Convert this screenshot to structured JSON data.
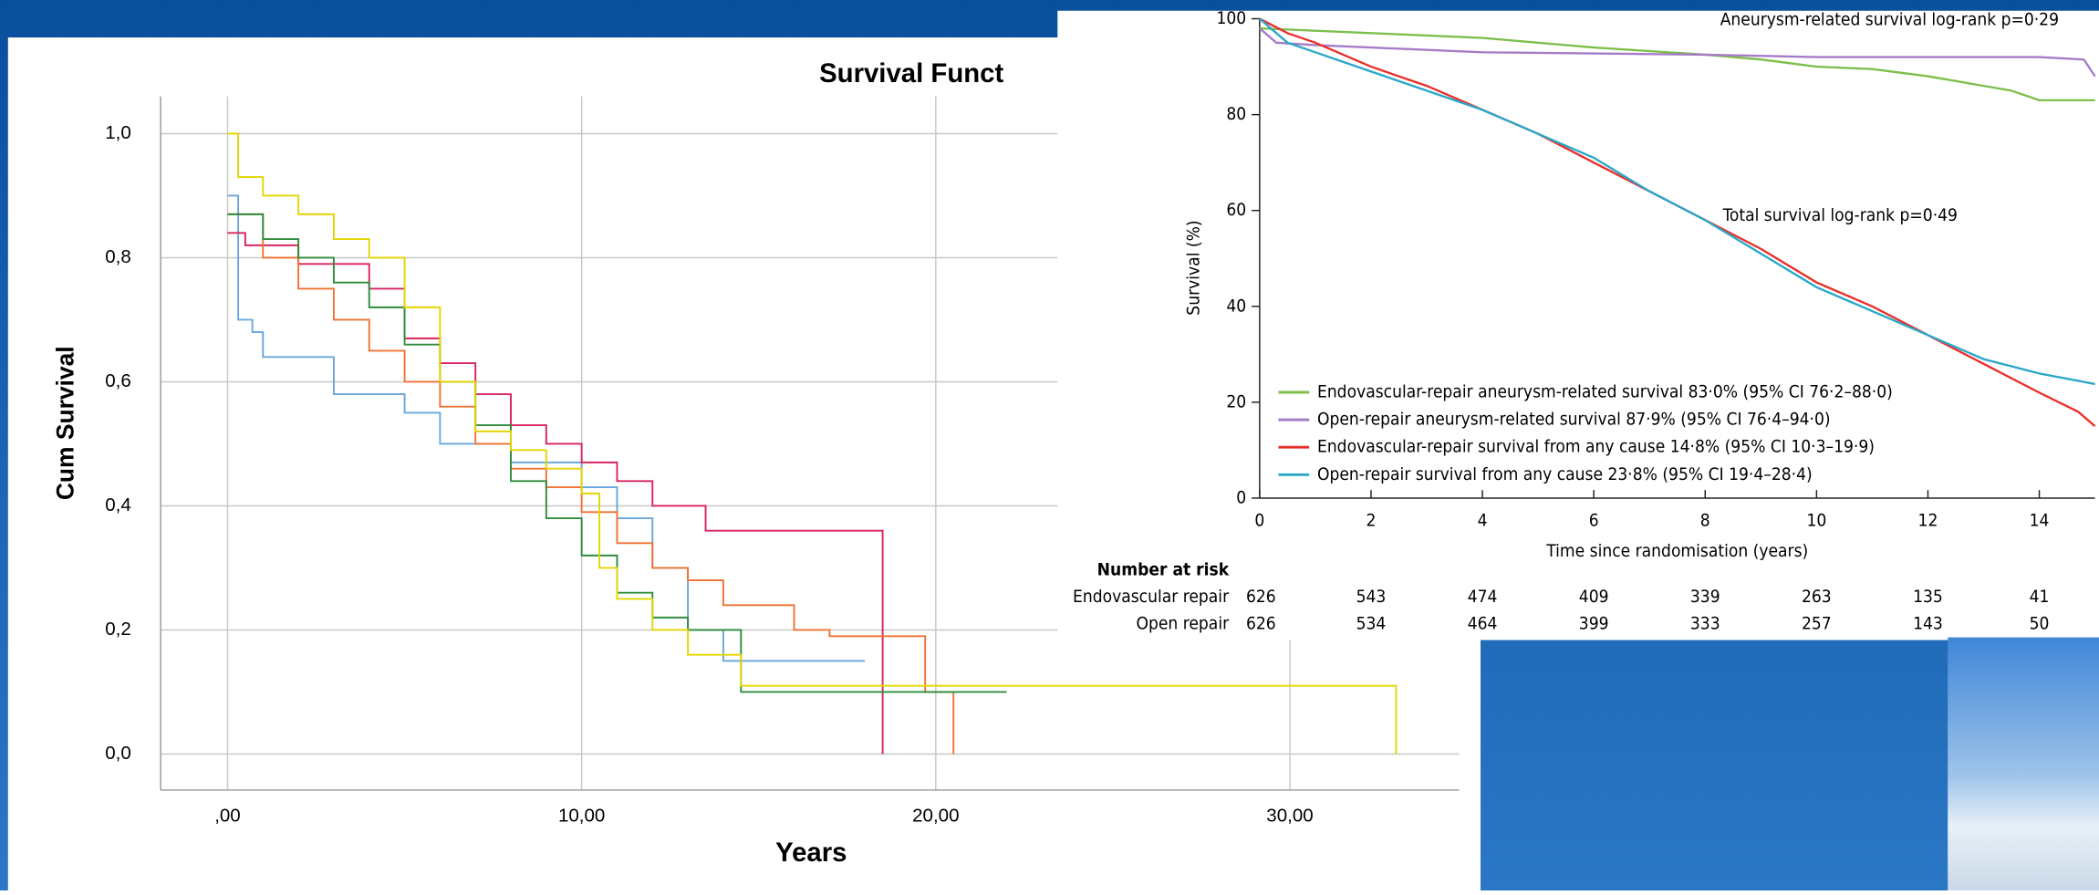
{
  "chart_data": [
    {
      "type": "line",
      "step": true,
      "title": "Survival Funct",
      "x_label": "Years",
      "y_label": "Cum Survival",
      "grid": true,
      "xlim": [
        -1.89,
        34.78
      ],
      "ylim": [
        -0.058,
        1.06
      ],
      "xticks": [
        {
          "value": 0,
          "label": ",00"
        },
        {
          "value": 10,
          "label": "10,00"
        },
        {
          "value": 20,
          "label": "20,00"
        },
        {
          "value": 30,
          "label": "30,00"
        }
      ],
      "yticks": [
        {
          "value": 0,
          "label": "0,0"
        },
        {
          "value": 0.2,
          "label": "0,2"
        },
        {
          "value": 0.4,
          "label": "0,4"
        },
        {
          "value": 0.6,
          "label": "0,6"
        },
        {
          "value": 0.8,
          "label": "0,8"
        },
        {
          "value": 1.0,
          "label": "1,0"
        }
      ],
      "series": [
        {
          "color": "#6aa6dc",
          "x": [
            0,
            0.3,
            0.7,
            1,
            2.5,
            3,
            5,
            6,
            8,
            9,
            10,
            11,
            12,
            13,
            14,
            18
          ],
          "values": [
            0.9,
            0.7,
            0.68,
            0.64,
            0.64,
            0.58,
            0.55,
            0.5,
            0.47,
            0.47,
            0.43,
            0.38,
            0.3,
            0.2,
            0.15,
            0.15
          ]
        },
        {
          "color": "#d9245c",
          "x": [
            0,
            0.5,
            2,
            4,
            5,
            6,
            7,
            8,
            9,
            10,
            11,
            12,
            13.5,
            16,
            18.5
          ],
          "values": [
            0.84,
            0.82,
            0.79,
            0.75,
            0.67,
            0.63,
            0.58,
            0.53,
            0.5,
            0.47,
            0.44,
            0.4,
            0.36,
            0.36,
            0
          ]
        },
        {
          "color": "#f07232",
          "x": [
            0,
            1,
            2,
            3,
            4,
            5,
            6,
            7,
            8,
            9,
            10,
            11,
            12,
            13,
            14,
            16,
            17,
            19.7,
            20.5
          ],
          "values": [
            0.87,
            0.8,
            0.75,
            0.7,
            0.65,
            0.6,
            0.56,
            0.5,
            0.46,
            0.43,
            0.39,
            0.34,
            0.3,
            0.28,
            0.24,
            0.2,
            0.19,
            0.1,
            0
          ]
        },
        {
          "color": "#2f8c3c",
          "x": [
            0,
            1,
            2,
            3,
            4,
            5,
            6,
            7,
            8,
            9,
            10,
            11,
            12,
            13,
            14.5,
            22
          ],
          "values": [
            0.87,
            0.83,
            0.8,
            0.76,
            0.72,
            0.66,
            0.6,
            0.53,
            0.44,
            0.38,
            0.32,
            0.26,
            0.22,
            0.2,
            0.1,
            0.1
          ]
        },
        {
          "color": "#e3d600",
          "x": [
            0,
            0.3,
            1,
            2,
            3,
            4,
            5,
            6,
            7,
            8,
            9,
            10,
            10.5,
            11,
            12,
            13,
            14.5,
            33
          ],
          "values": [
            1.0,
            0.93,
            0.9,
            0.87,
            0.83,
            0.8,
            0.72,
            0.6,
            0.52,
            0.49,
            0.46,
            0.42,
            0.3,
            0.25,
            0.2,
            0.16,
            0.11,
            0
          ]
        }
      ]
    },
    {
      "type": "line",
      "step": false,
      "x_label": "Time since randomisation (years)",
      "y_label": "Survival (%)",
      "grid": false,
      "legend": "lower left",
      "xlim": [
        0,
        15
      ],
      "ylim": [
        0,
        100
      ],
      "xticks": [
        0,
        2,
        4,
        6,
        8,
        10,
        12,
        14
      ],
      "yticks": [
        0,
        20,
        40,
        60,
        80,
        100
      ],
      "annotations": [
        "Aneurysm-related survival log-rank p=0·29",
        "Total survival log-rank p=0·49"
      ],
      "series": [
        {
          "name": "Endovascular-repair aneurysm-related survival 83·0% (95% CI 76·2–88·0)",
          "color": "#7cbf4a",
          "x": [
            0,
            1,
            2,
            4,
            6,
            8,
            9,
            10,
            11,
            12,
            13,
            13.5,
            14,
            15
          ],
          "values": [
            98,
            97.5,
            97,
            96,
            94,
            92.5,
            91.5,
            90,
            89.5,
            88,
            86,
            85,
            83,
            83
          ]
        },
        {
          "name": "Open-repair aneurysm-related survival 87·9% (95% CI 76·4–94·0)",
          "color": "#a57cc8",
          "x": [
            0,
            0.3,
            1,
            2,
            4,
            8,
            10,
            12,
            14,
            14.8,
            15
          ],
          "values": [
            98,
            95,
            94.5,
            94,
            93,
            92.5,
            92,
            92,
            92,
            91.5,
            88
          ]
        },
        {
          "name": "Endovascular-repair survival from any cause 14·8% (95% CI 10·3–19·9)",
          "color": "#e8302a",
          "x": [
            0,
            0.5,
            1,
            2,
            3,
            4,
            5,
            6,
            7,
            8,
            9,
            10,
            11,
            12,
            13,
            14,
            14.7,
            15
          ],
          "values": [
            100,
            97,
            95,
            90,
            86,
            81,
            76,
            70,
            64,
            58,
            52,
            45,
            40,
            34,
            28,
            22,
            18,
            15
          ]
        },
        {
          "name": "Open-repair survival from any cause 23·8% (95% CI 19·4–28·4)",
          "color": "#2aa7c9",
          "x": [
            0,
            0.5,
            1,
            2,
            3,
            4,
            5,
            6,
            7,
            8,
            9,
            10,
            11,
            12,
            13,
            14,
            15
          ],
          "values": [
            100,
            95,
            93,
            89,
            85,
            81,
            76,
            71,
            64,
            58,
            51,
            44,
            39,
            34,
            29,
            26,
            23.8
          ]
        }
      ]
    }
  ],
  "risk_table": {
    "title": "Number at risk",
    "rows": [
      {
        "label": "Endovascular repair",
        "values": [
          626,
          543,
          474,
          409,
          339,
          263,
          135,
          41
        ]
      },
      {
        "label": "Open repair",
        "values": [
          626,
          534,
          464,
          399,
          333,
          257,
          143,
          50
        ]
      }
    ]
  }
}
